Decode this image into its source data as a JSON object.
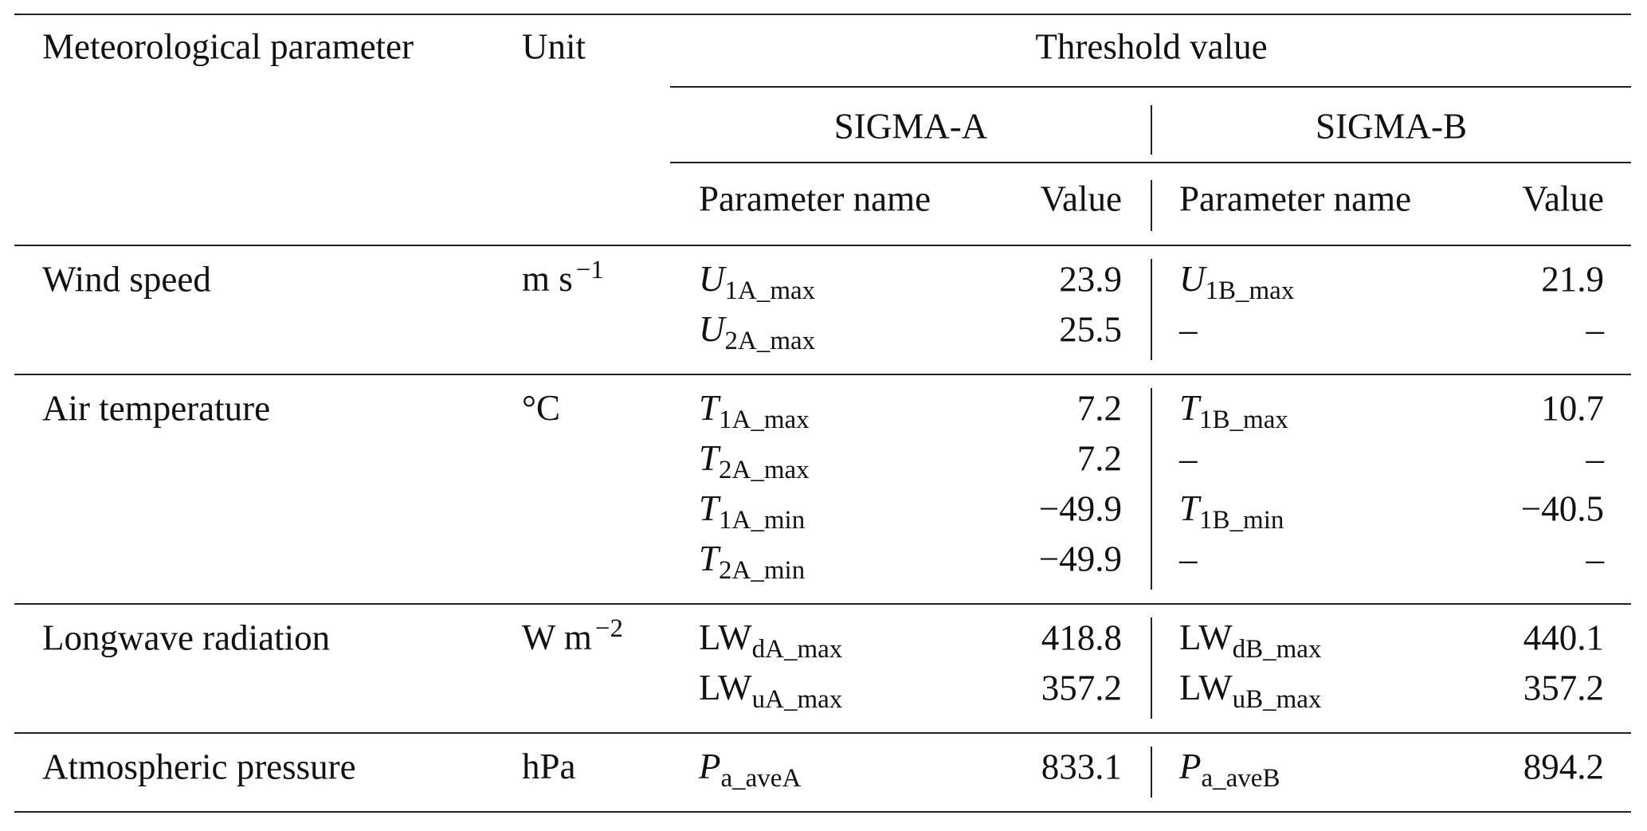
{
  "header": {
    "col1": "Meteorological parameter",
    "col2": "Unit",
    "threshold": "Threshold value",
    "groups": [
      "SIGMA-A",
      "SIGMA-B"
    ],
    "subcols": [
      "Parameter name",
      "Value",
      "Parameter name",
      "Value"
    ]
  },
  "sections": [
    {
      "parameter": "Wind speed",
      "unit": {
        "base": "m s",
        "sup": "−1"
      },
      "rows": [
        {
          "a_name": {
            "base": "U",
            "sub": "1A_max",
            "italic": true
          },
          "a_value": "23.9",
          "b_name": {
            "base": "U",
            "sub": "1B_max",
            "italic": true
          },
          "b_value": "21.9"
        },
        {
          "a_name": {
            "base": "U",
            "sub": "2A_max",
            "italic": true
          },
          "a_value": "25.5",
          "b_name": "–",
          "b_value": "–"
        }
      ]
    },
    {
      "parameter": "Air temperature",
      "unit": {
        "base": "°C"
      },
      "rows": [
        {
          "a_name": {
            "base": "T",
            "sub": "1A_max",
            "italic": true
          },
          "a_value": "7.2",
          "b_name": {
            "base": "T",
            "sub": "1B_max",
            "italic": true
          },
          "b_value": "10.7"
        },
        {
          "a_name": {
            "base": "T",
            "sub": "2A_max",
            "italic": true
          },
          "a_value": "7.2",
          "b_name": "–",
          "b_value": "–"
        },
        {
          "a_name": {
            "base": "T",
            "sub": "1A_min",
            "italic": true
          },
          "a_value": "−49.9",
          "b_name": {
            "base": "T",
            "sub": "1B_min",
            "italic": true
          },
          "b_value": "−40.5"
        },
        {
          "a_name": {
            "base": "T",
            "sub": "2A_min",
            "italic": true
          },
          "a_value": "−49.9",
          "b_name": "–",
          "b_value": "–"
        }
      ]
    },
    {
      "parameter": "Longwave radiation",
      "unit": {
        "base": "W m",
        "sup": "−2"
      },
      "rows": [
        {
          "a_name": {
            "base": "LW",
            "sub": "dA_max",
            "italic": false
          },
          "a_value": "418.8",
          "b_name": {
            "base": "LW",
            "sub": "dB_max",
            "italic": false
          },
          "b_value": "440.1"
        },
        {
          "a_name": {
            "base": "LW",
            "sub": "uA_max",
            "italic": false
          },
          "a_value": "357.2",
          "b_name": {
            "base": "LW",
            "sub": "uB_max",
            "italic": false
          },
          "b_value": "357.2"
        }
      ]
    },
    {
      "parameter": "Atmospheric pressure",
      "unit": {
        "base": "hPa"
      },
      "rows": [
        {
          "a_name": {
            "base": "P",
            "sub": "a_aveA",
            "italic": true
          },
          "a_value": "833.1",
          "b_name": {
            "base": "P",
            "sub": "a_aveB",
            "italic": true
          },
          "b_value": "894.2"
        }
      ]
    }
  ]
}
